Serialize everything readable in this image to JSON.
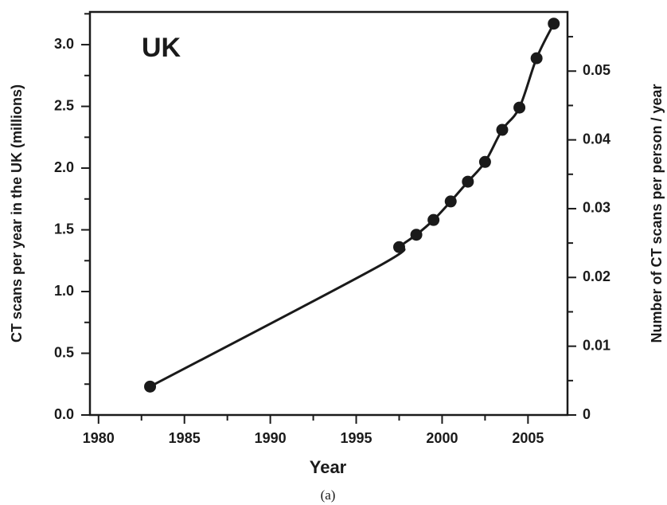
{
  "chart_data": {
    "type": "line",
    "annotation": "UK",
    "caption": "(a)",
    "x_label": "Year",
    "y_label": "CT scans per year in the UK (millions)",
    "y2_label": "Number of CT scans per person / year",
    "x": [
      1983,
      1996.5,
      1997.5,
      1998.5,
      1999.5,
      2000.5,
      2001.5,
      2002.5,
      2003.5,
      2004.5,
      2005.5,
      2006.5
    ],
    "series": [
      {
        "color": "#1a1a1a",
        "values": [
          0.23,
          1.22,
          1.36,
          1.46,
          1.58,
          1.73,
          1.89,
          2.05,
          2.31,
          2.49,
          2.89,
          3.17
        ],
        "markers": [
          true,
          false,
          true,
          true,
          true,
          true,
          true,
          true,
          true,
          true,
          true,
          true
        ]
      }
    ],
    "xlim": [
      1979.5,
      2007.3
    ],
    "xticks": [
      1980,
      1985,
      1990,
      1995,
      2000,
      2005
    ],
    "xminorticks": [
      1982.5,
      1987.5,
      1992.5,
      1997.5,
      2002.5
    ],
    "ylim": [
      0,
      3.265
    ],
    "yticks": [
      {
        "value": 0,
        "label": "0.0"
      },
      0.5,
      {
        "value": 1,
        "label": "1.0"
      },
      1.5,
      {
        "value": 2,
        "label": "2.0"
      },
      2.5,
      {
        "value": 3,
        "label": "3.0"
      }
    ],
    "yminorticks": [
      0.25,
      0.75,
      1.25,
      1.75,
      2.25,
      2.75,
      3.25
    ],
    "y2lim": [
      0,
      0.0586
    ],
    "y2ticks": [
      0,
      0.01,
      0.02,
      0.03,
      0.04,
      0.05
    ],
    "y2minorticks": [
      0.005,
      0.015,
      0.025,
      0.035,
      0.045,
      0.055
    ]
  }
}
